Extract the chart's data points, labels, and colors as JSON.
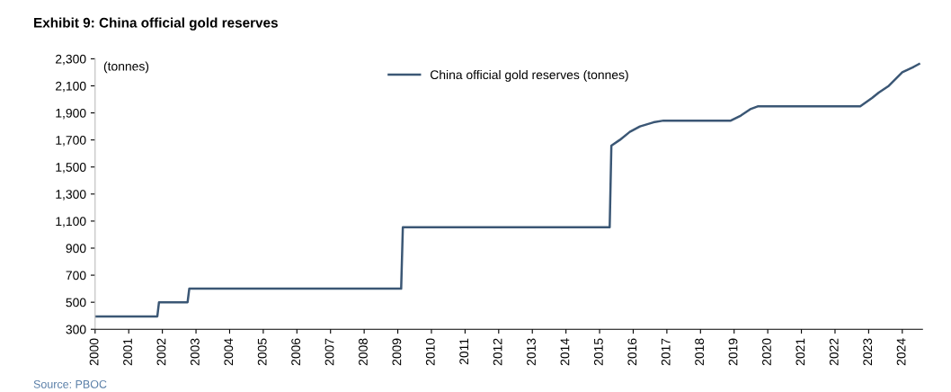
{
  "chart_data": {
    "type": "line",
    "title": "Exhibit 9: China official gold reserves",
    "x": [
      2000,
      2001.85,
      2001.9,
      2002.75,
      2002.8,
      2009.1,
      2009.15,
      2015.3,
      2015.35,
      2015.6,
      2015.9,
      2016.2,
      2016.6,
      2016.9,
      2018.9,
      2019.2,
      2019.5,
      2019.7,
      2022.75,
      2023.1,
      2023.3,
      2023.6,
      2023.8,
      2024.0,
      2024.3,
      2024.5
    ],
    "series": [
      {
        "name": "China official gold reserves (tonnes)",
        "color": "#3b5775",
        "values": [
          395,
          395,
          500,
          500,
          600,
          600,
          1054,
          1054,
          1658,
          1700,
          1760,
          1800,
          1830,
          1843,
          1843,
          1880,
          1930,
          1948,
          1948,
          2010,
          2050,
          2100,
          2150,
          2200,
          2235,
          2262
        ]
      }
    ],
    "xlim": [
      2000,
      2024.6
    ],
    "xticks": [
      2000,
      2001,
      2002,
      2003,
      2004,
      2005,
      2006,
      2007,
      2008,
      2009,
      2010,
      2011,
      2012,
      2013,
      2014,
      2015,
      2016,
      2017,
      2018,
      2019,
      2020,
      2021,
      2022,
      2023,
      2024
    ],
    "ylim": [
      300,
      2300
    ],
    "yticks": [
      {
        "value": 300,
        "label": "300"
      },
      {
        "value": 500,
        "label": "500"
      },
      {
        "value": 700,
        "label": "700"
      },
      {
        "value": 900,
        "label": "900"
      },
      {
        "value": 1100,
        "label": "1,100"
      },
      {
        "value": 1300,
        "label": "1,300"
      },
      {
        "value": 1500,
        "label": "1,500"
      },
      {
        "value": 1700,
        "label": "1,700"
      },
      {
        "value": 1900,
        "label": "1,900"
      },
      {
        "value": 2100,
        "label": "2,100"
      },
      {
        "value": 2300,
        "label": "2,300"
      }
    ],
    "annotations": [
      "(tonnes)",
      "Source: PBOC"
    ],
    "grid": false,
    "legend": "top",
    "line_style": "solid",
    "marker": "none"
  }
}
